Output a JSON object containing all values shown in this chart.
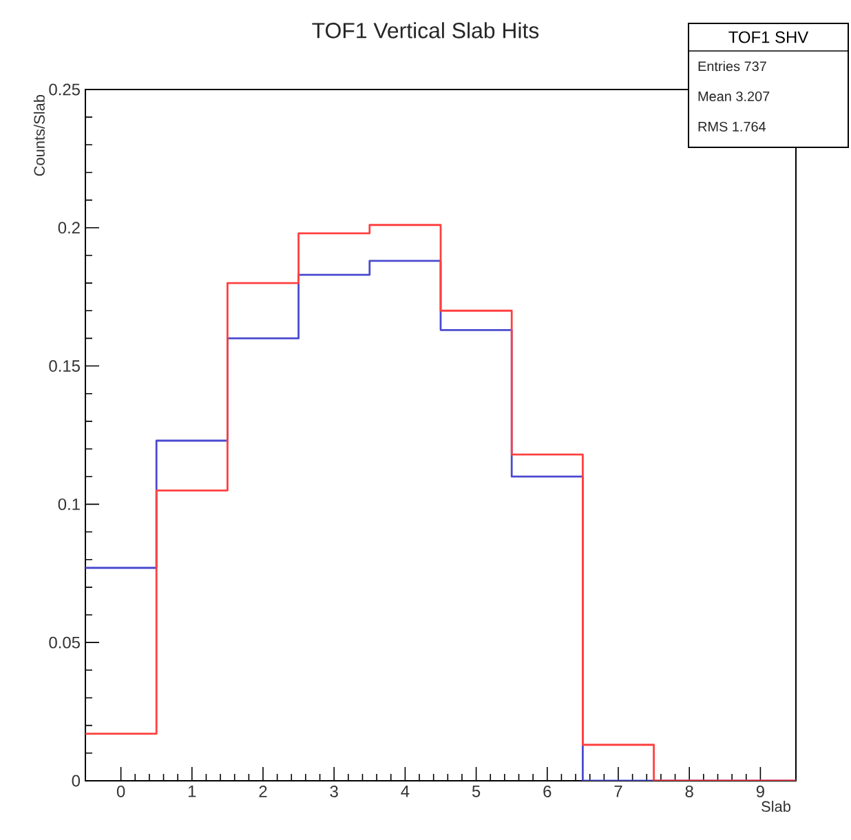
{
  "chart_data": {
    "type": "histogram",
    "title": "TOF1 Vertical Slab Hits",
    "xlabel": "Slab",
    "ylabel": "Counts/Slab",
    "bins": [
      -0.5,
      0.5,
      1.5,
      2.5,
      3.5,
      4.5,
      5.5,
      6.5,
      7.5,
      8.5,
      9.5
    ],
    "series": [
      {
        "color": "#4a4ad0",
        "values": [
          0.077,
          0.123,
          0.16,
          0.183,
          0.188,
          0.163,
          0.11,
          0,
          0,
          0
        ]
      },
      {
        "color": "#ff4040",
        "values": [
          0.017,
          0.105,
          0.18,
          0.198,
          0.201,
          0.17,
          0.118,
          0.013,
          0,
          0
        ]
      }
    ],
    "xlim": [
      -0.5,
      9.5
    ],
    "ylim": [
      0,
      0.25
    ],
    "xticks": [
      0,
      1,
      2,
      3,
      4,
      5,
      6,
      7,
      8,
      9
    ],
    "yticks": [
      0,
      0.05,
      0.1,
      0.15,
      0.2,
      0.25
    ],
    "grid": false,
    "annotations": [
      "TOF1 SHV",
      "Entries 737",
      "Mean 3.207",
      "RMS 1.764"
    ]
  }
}
